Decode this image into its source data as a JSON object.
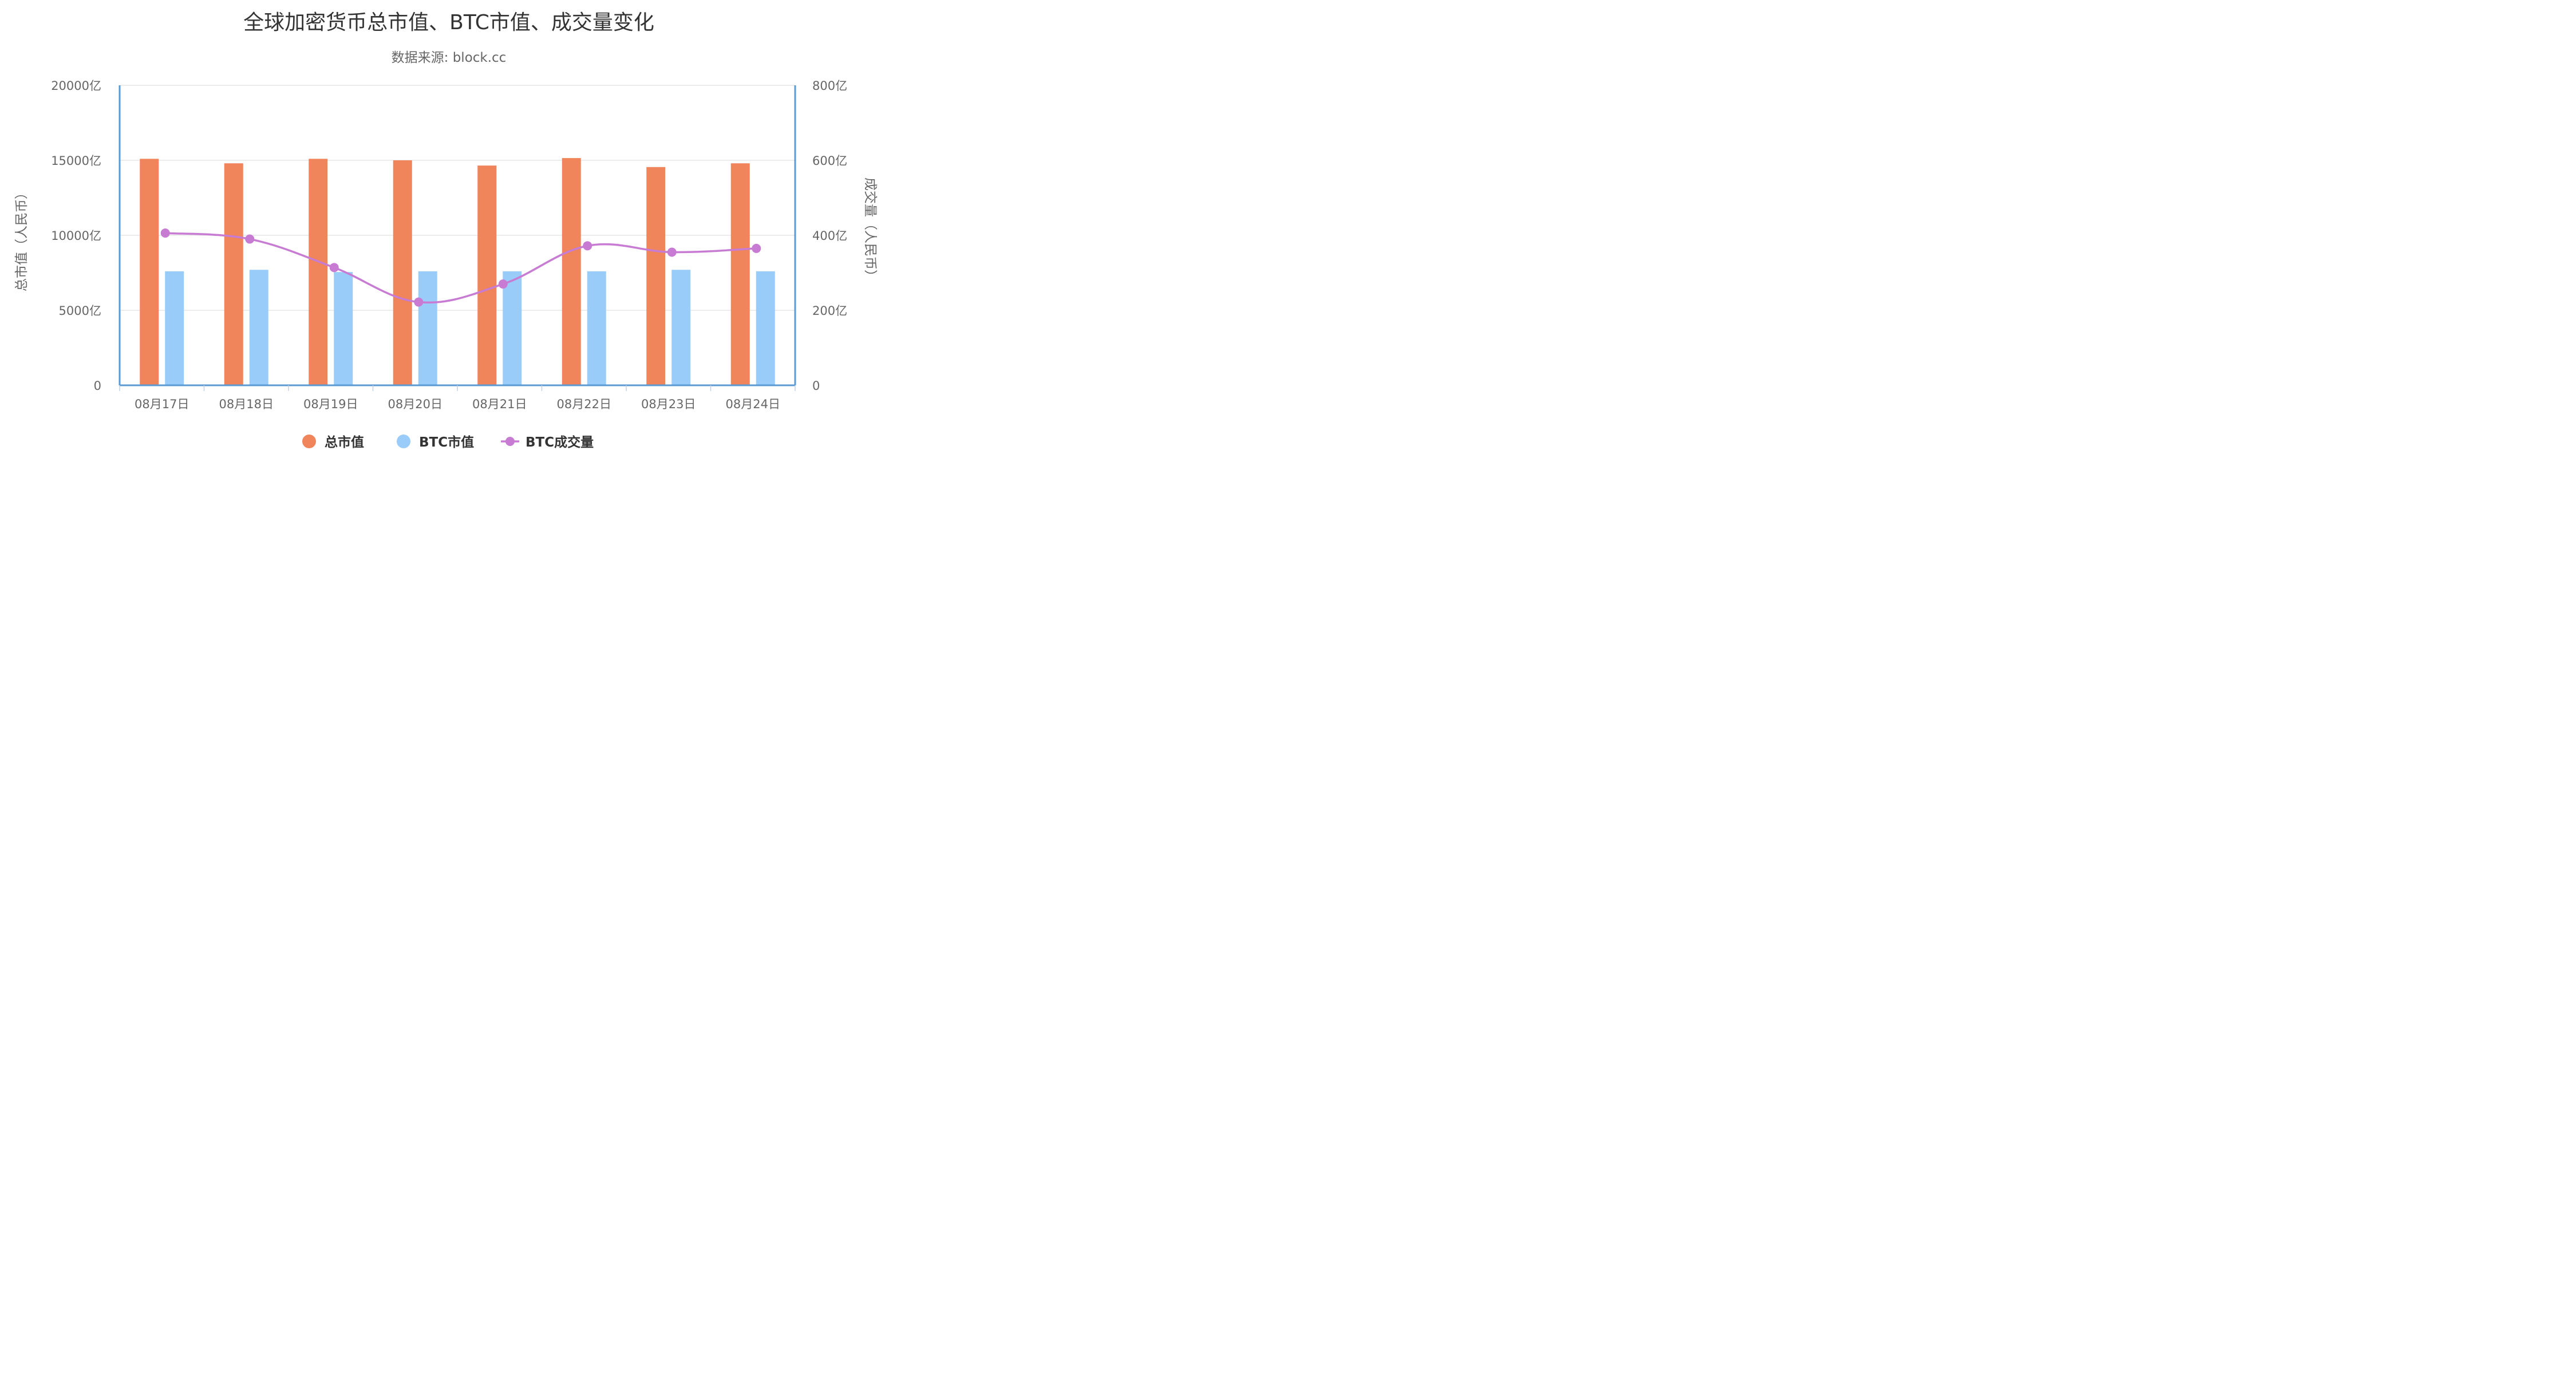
{
  "chart_data": {
    "type": "bar",
    "title": "全球加密货币总市值、BTC市值、成交量变化",
    "subtitle": "数据来源: block.cc",
    "categories": [
      "08月17日",
      "08月18日",
      "08月19日",
      "08月20日",
      "08月21日",
      "08月22日",
      "08月23日",
      "08月24日"
    ],
    "y_left": {
      "label": "总市值（人民币）",
      "ticks": [
        "0",
        "5000亿",
        "10000亿",
        "15000亿",
        "20000亿"
      ],
      "ylim": [
        0,
        20000
      ]
    },
    "y_right": {
      "label": "成交量（人民币）",
      "ticks": [
        "0",
        "200亿",
        "400亿",
        "600亿",
        "800亿"
      ],
      "ylim": [
        0,
        800
      ]
    },
    "series": [
      {
        "name": "总市值",
        "type": "bar",
        "axis": "left",
        "color": "#f0855c",
        "values": [
          15100,
          14800,
          15100,
          15000,
          14650,
          15150,
          14550,
          14800
        ]
      },
      {
        "name": "BTC市值",
        "type": "bar",
        "axis": "left",
        "color": "#99ccf8",
        "values": [
          7600,
          7700,
          7550,
          7600,
          7600,
          7600,
          7700,
          7600
        ]
      },
      {
        "name": "BTC成交量",
        "type": "line",
        "axis": "right",
        "color": "#c77bd3",
        "values": [
          406,
          390,
          314,
          222,
          270,
          372,
          355,
          365
        ]
      }
    ],
    "grid": true,
    "legend_position": "bottom-center"
  }
}
